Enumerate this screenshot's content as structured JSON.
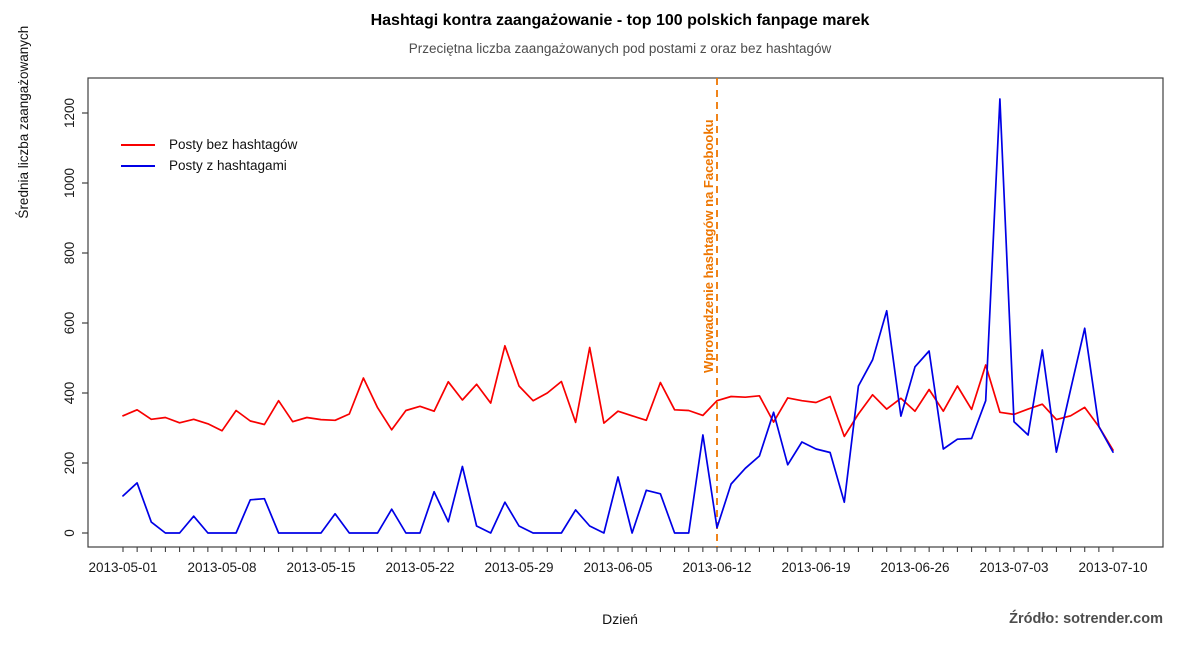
{
  "title": "Hashtagi kontra zaangażowanie - top 100 polskich fanpage marek",
  "subtitle": "Przeciętna liczba zaangażowanych pod postami z oraz bez hashtagów",
  "source": "Źródło: sotrender.com",
  "annotation": {
    "label": "Wprowadzenie hashtagów na Facebooku",
    "date": "2013-06-12",
    "day_index": 42,
    "color": "#ee7600"
  },
  "chart_data": {
    "type": "line",
    "title": "Hashtagi kontra zaangażowanie - top 100 polskich fanpage marek",
    "subtitle": "Przeciętna liczba zaangażowanych pod postami z oraz bez hashtagów",
    "xlabel": "Dzień",
    "ylabel": "Średnia liczba zaangażowanych",
    "x_start_date": "2013-05-01",
    "x_days_total": 71,
    "x_tick_every_days": 7,
    "x_tick_labels": [
      "2013-05-01",
      "2013-05-08",
      "2013-05-15",
      "2013-05-22",
      "2013-05-29",
      "2013-06-05",
      "2013-06-12",
      "2013-06-19",
      "2013-06-26",
      "2013-07-03",
      "2013-07-10"
    ],
    "y_ticks": [
      0,
      200,
      400,
      600,
      800,
      1000,
      1200
    ],
    "ylim": [
      0,
      1283
    ],
    "grid": false,
    "legend_position": "top-left",
    "series": [
      {
        "name": "Posty bez hashtagów",
        "color": "#f80000",
        "values": [
          335,
          352,
          325,
          330,
          315,
          325,
          312,
          292,
          350,
          320,
          310,
          378,
          318,
          330,
          324,
          322,
          340,
          443,
          358,
          295,
          350,
          362,
          348,
          432,
          380,
          425,
          371,
          535,
          420,
          378,
          400,
          433,
          316,
          530,
          314,
          348,
          335,
          322,
          430,
          352,
          350,
          336,
          378,
          390,
          388,
          392,
          317,
          386,
          378,
          373,
          390,
          276,
          340,
          395,
          354,
          385,
          348,
          410,
          348,
          420,
          353,
          480,
          345,
          339,
          354,
          368,
          324,
          335,
          359,
          304,
          237
        ]
      },
      {
        "name": "Posty z hashtagami",
        "color": "#0000e6",
        "values": [
          106,
          143,
          31,
          0,
          0,
          48,
          0,
          0,
          0,
          95,
          98,
          0,
          0,
          0,
          0,
          55,
          0,
          0,
          0,
          68,
          0,
          0,
          118,
          32,
          190,
          20,
          0,
          88,
          20,
          0,
          0,
          0,
          66,
          20,
          0,
          160,
          0,
          122,
          112,
          0,
          0,
          280,
          15,
          140,
          185,
          220,
          345,
          195,
          260,
          240,
          230,
          88,
          420,
          495,
          635,
          334,
          475,
          520,
          240,
          268,
          270,
          378,
          1240,
          318,
          280,
          523,
          231,
          410,
          585,
          304,
          231
        ]
      }
    ]
  }
}
